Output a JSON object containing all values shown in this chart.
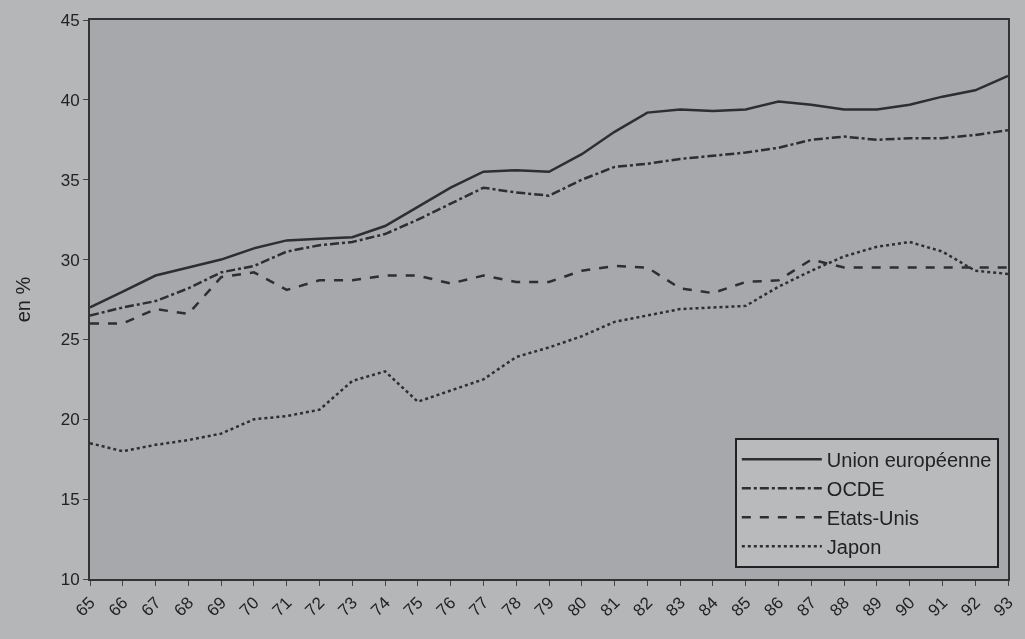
{
  "chart_data": {
    "type": "line",
    "ylabel": "en %",
    "categories": [
      "65",
      "66",
      "67",
      "68",
      "69",
      "70",
      "71",
      "72",
      "73",
      "74",
      "75",
      "76",
      "77",
      "78",
      "79",
      "80",
      "81",
      "82",
      "83",
      "84",
      "85",
      "86",
      "87",
      "88",
      "89",
      "90",
      "91",
      "92",
      "93"
    ],
    "series": [
      {
        "name": "Union européenne",
        "color": "#2e2e2e",
        "line_style": "solid",
        "values": [
          27,
          28,
          29,
          29.5,
          30,
          30.7,
          31.2,
          31.3,
          31.4,
          32.1,
          33.3,
          34.5,
          35.5,
          35.6,
          35.5,
          36.6,
          38,
          39.2,
          39.4,
          39.3,
          39.4,
          39.9,
          39.7,
          39.4,
          39.4,
          39.7,
          40.2,
          40.6,
          41.5
        ]
      },
      {
        "name": "OCDE",
        "color": "#2e2e2e",
        "line_style": "dashdot",
        "values": [
          26.5,
          27,
          27.4,
          28.2,
          29.2,
          29.6,
          30.5,
          30.9,
          31.1,
          31.6,
          32.5,
          33.5,
          34.5,
          34.2,
          34.0,
          35.0,
          35.8,
          36.0,
          36.3,
          36.5,
          36.7,
          37.0,
          37.5,
          37.7,
          37.5,
          37.6,
          37.6,
          37.8,
          38.1
        ]
      },
      {
        "name": "Etats-Unis",
        "color": "#2e2e2e",
        "line_style": "dashed",
        "values": [
          26,
          26,
          26.9,
          26.6,
          28.9,
          29.2,
          28.1,
          28.7,
          28.7,
          29,
          29,
          28.5,
          29,
          28.6,
          28.6,
          29.3,
          29.6,
          29.5,
          28.2,
          27.9,
          28.6,
          28.7,
          30.0,
          29.5,
          29.5,
          29.5,
          29.5,
          29.5,
          29.5
        ]
      },
      {
        "name": "Japon",
        "color": "#2e2e2e",
        "line_style": "dotted",
        "values": [
          18.5,
          18,
          18.4,
          18.7,
          19.1,
          20,
          20.2,
          20.6,
          22.4,
          23,
          21.1,
          21.8,
          22.5,
          23.9,
          24.5,
          25.2,
          26.1,
          26.5,
          26.9,
          27,
          27.1,
          28.3,
          29.3,
          30.2,
          30.8,
          31.1,
          30.5,
          29.3,
          29.1
        ]
      }
    ],
    "ylim": [
      10,
      45
    ],
    "yticks": [
      10,
      15,
      20,
      25,
      30,
      35,
      40,
      45
    ],
    "grid": false,
    "legend": "bottom right",
    "marker": "none"
  }
}
